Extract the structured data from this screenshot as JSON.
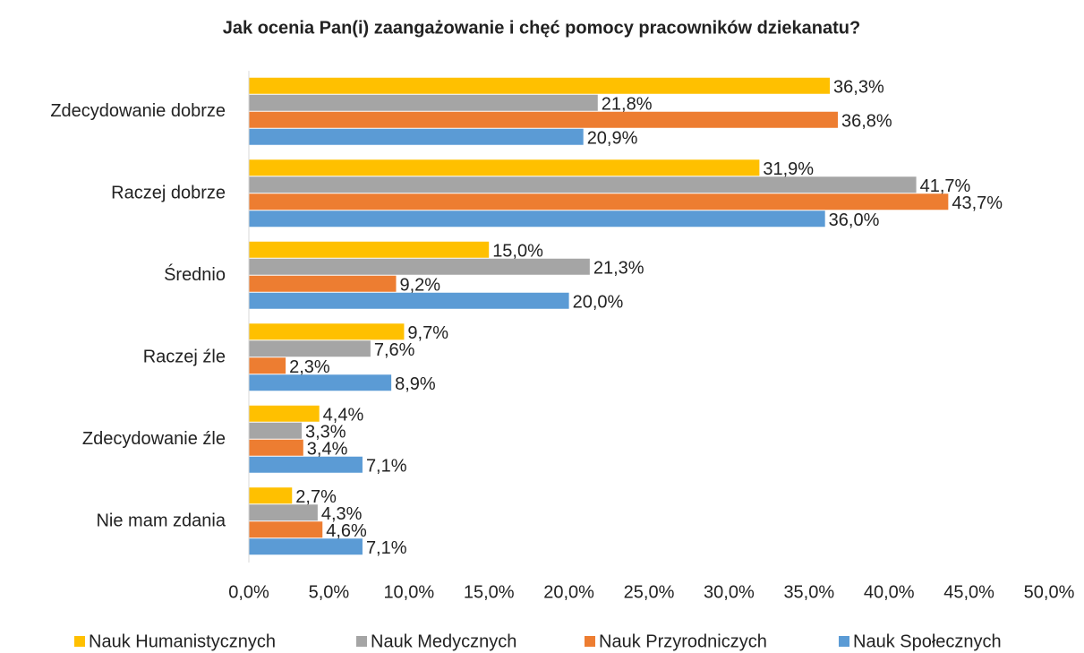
{
  "chart_data": {
    "type": "hbar",
    "title": "Jak ocenia Pan(i) zaangażowanie i chęć pomocy pracowników dziekanatu?",
    "categories": [
      "Zdecydowanie dobrze",
      "Raczej dobrze",
      "Średnio",
      "Raczej źle",
      "Zdecydowanie źle",
      "Nie mam zdania"
    ],
    "series": [
      {
        "name": "Nauk Humanistycznych",
        "color": "#ffc000",
        "values": [
          36.3,
          31.9,
          15.0,
          9.7,
          4.4,
          2.7
        ],
        "value_labels": [
          "36,3%",
          "31,9%",
          "15,0%",
          "9,7%",
          "4,4%",
          "2,7%"
        ]
      },
      {
        "name": "Nauk Medycznych",
        "color": "#a5a5a5",
        "values": [
          21.8,
          41.7,
          21.3,
          7.6,
          3.3,
          4.3
        ],
        "value_labels": [
          "21,8%",
          "41,7%",
          "21,3%",
          "7,6%",
          "3,3%",
          "4,3%"
        ]
      },
      {
        "name": "Nauk Przyrodniczych",
        "color": "#ed7d31",
        "values": [
          36.8,
          43.7,
          9.2,
          2.3,
          3.4,
          4.6
        ],
        "value_labels": [
          "36,8%",
          "43,7%",
          "9,2%",
          "2,3%",
          "3,4%",
          "4,6%"
        ]
      },
      {
        "name": "Nauk Społecznych",
        "color": "#5b9bd5",
        "values": [
          20.9,
          36.0,
          20.0,
          8.9,
          7.1,
          7.1
        ],
        "value_labels": [
          "20,9%",
          "36,0%",
          "20,0%",
          "8,9%",
          "7,1%",
          "7,1%"
        ]
      }
    ],
    "xlim": [
      0,
      50
    ],
    "xticks": [
      {
        "value": 0,
        "label": "0,0%"
      },
      {
        "value": 5,
        "label": "5,0%"
      },
      {
        "value": 10,
        "label": "10,0%"
      },
      {
        "value": 15,
        "label": "15,0%"
      },
      {
        "value": 20,
        "label": "20,0%"
      },
      {
        "value": 25,
        "label": "25,0%"
      },
      {
        "value": 30,
        "label": "30,0%"
      },
      {
        "value": 35,
        "label": "35,0%"
      },
      {
        "value": 40,
        "label": "40,0%"
      },
      {
        "value": 45,
        "label": "45,0%"
      },
      {
        "value": 50,
        "label": "50,0%"
      }
    ],
    "grid": false,
    "legend": "bottom"
  }
}
